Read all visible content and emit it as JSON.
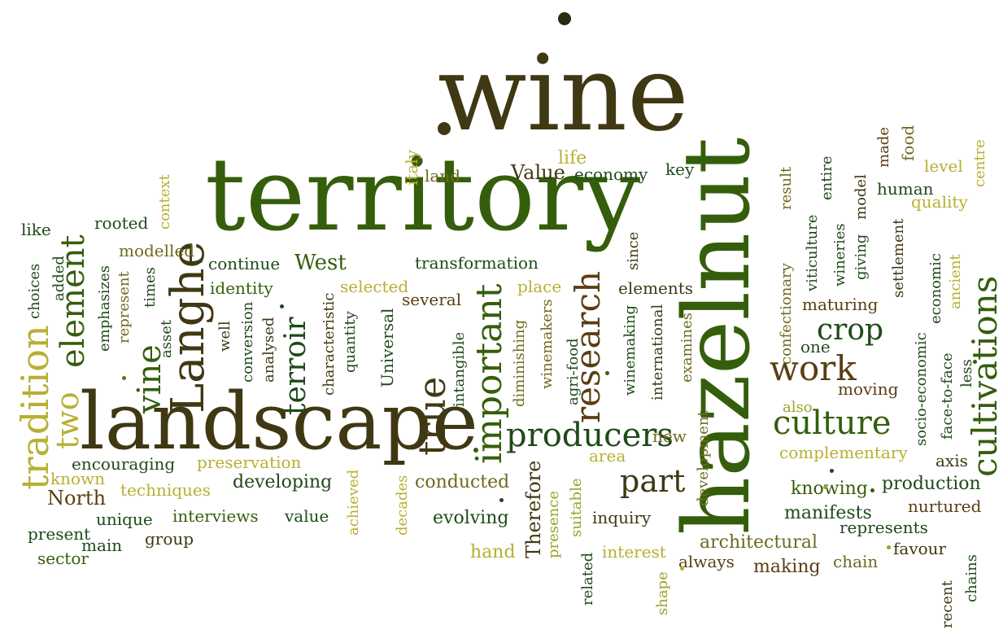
{
  "words": {
    "wine": "wine",
    "territory": "territory",
    "hazelnut": "hazelnut",
    "landscape": "landscape",
    "langhe": "Langhe",
    "tradition": "tradition",
    "element": "element",
    "two": "two",
    "vine": "vine",
    "terroir": "terroir",
    "true": "true",
    "important": "important",
    "research": "research",
    "producers": "producers",
    "culture": "culture",
    "cultivations": "cultivations",
    "work": "work",
    "crop": "crop",
    "part": "part",
    "transformation": "transformation",
    "continue": "continue",
    "west": "West",
    "identity": "identity",
    "selected": "selected",
    "several": "several",
    "place": "place",
    "elements": "elements",
    "maturing": "maturing",
    "one": "one",
    "moving": "moving",
    "also": "also",
    "complementary": "complementary",
    "axis": "axis",
    "knowing": "knowing",
    "production": "production",
    "manifests": "manifests",
    "nurtured": "nurtured",
    "represents": "represents",
    "favour": "favour",
    "chain": "chain",
    "making": "making",
    "always": "always",
    "architectural": "architectural",
    "interest": "interest",
    "hand": "hand",
    "inquiry": "inquiry",
    "evolving": "evolving",
    "conducted": "conducted",
    "developing": "developing",
    "value": "value",
    "interviews": "interviews",
    "techniques": "techniques",
    "preservation": "preservation",
    "encouraging": "encouraging",
    "known": "known",
    "north": "North",
    "unique": "unique",
    "present": "present",
    "main": "main",
    "group": "group",
    "sector": "sector",
    "like": "like",
    "rooted": "rooted",
    "modelled": "modelled",
    "land": "land",
    "value_cap": "Value",
    "economy": "economy",
    "key": "key",
    "life": "life",
    "human": "human",
    "level": "level",
    "quality": "quality",
    "new": "new",
    "area": "area",
    "therefore": "Therefore",
    "context": "context",
    "italy": "italy",
    "emphasizes": "emphasizes",
    "represent": "represent",
    "added": "added",
    "choices": "choices",
    "times": "times",
    "asset": "asset",
    "well": "well",
    "conversion": "conversion",
    "analysed": "analysed",
    "characteristic": "characteristic",
    "quantity": "quantity",
    "universal": "Universal",
    "intangible": "intangible",
    "diminishing": "diminishing",
    "winemakers": "winemakers",
    "agri_food": "agri-food",
    "winemaking": "winemaking",
    "international": "international",
    "since": "since",
    "examines": "examines",
    "development": "development",
    "confectionary": "confectionary",
    "result": "result",
    "viticulture": "viticulture",
    "entire": "entire",
    "wineries": "wineries",
    "giving": "giving",
    "model": "model",
    "made": "made",
    "food": "food",
    "settlement": "settlement",
    "economic": "economic",
    "ancient": "ancient",
    "centre": "centre",
    "socio_economic": "socio-economic",
    "face_to_face": "face-to-face",
    "less": "less",
    "achieved": "achieved",
    "decades": "decades",
    "presence": "presence",
    "suitable": "suitable",
    "related": "related",
    "shape": "shape",
    "recent": "recent",
    "chains": "chains"
  },
  "colors": {
    "dark_olive_brown": "#3f3813",
    "dark_green": "#355e0c",
    "deep_green": "#1f4a1a",
    "brown": "#5a3d12",
    "light_olive": "#9aa22a",
    "yellow_olive": "#b7b032",
    "mid_olive": "#6d6a1e",
    "background": "#ffffff"
  }
}
